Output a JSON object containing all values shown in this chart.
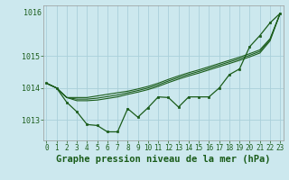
{
  "title": "Graphe pression niveau de la mer (hPa)",
  "bg_color": "#cce8ee",
  "grid_color": "#aad0da",
  "line_color": "#1a5c1a",
  "marker_color": "#1a5c1a",
  "tick_color": "#1a5c1a",
  "hours": [
    0,
    1,
    2,
    3,
    4,
    5,
    6,
    7,
    8,
    9,
    10,
    11,
    12,
    13,
    14,
    15,
    16,
    17,
    18,
    19,
    20,
    21,
    22,
    23
  ],
  "actual": [
    1014.15,
    1014.0,
    1013.55,
    1013.25,
    1012.85,
    1012.82,
    1012.62,
    1012.62,
    1013.35,
    1013.08,
    1013.38,
    1013.72,
    1013.7,
    1013.4,
    1013.72,
    1013.72,
    1013.72,
    1014.0,
    1014.42,
    1014.6,
    1015.3,
    1015.65,
    1016.05,
    1016.35
  ],
  "trend1": [
    1014.15,
    1014.0,
    1013.7,
    1013.7,
    1013.7,
    1013.75,
    1013.8,
    1013.85,
    1013.9,
    1013.97,
    1014.05,
    1014.15,
    1014.27,
    1014.38,
    1014.48,
    1014.57,
    1014.67,
    1014.77,
    1014.87,
    1014.97,
    1015.08,
    1015.2,
    1015.55,
    1016.35
  ],
  "trend2": [
    1014.15,
    1014.0,
    1013.7,
    1013.65,
    1013.65,
    1013.68,
    1013.73,
    1013.78,
    1013.85,
    1013.92,
    1014.0,
    1014.1,
    1014.22,
    1014.33,
    1014.43,
    1014.52,
    1014.62,
    1014.72,
    1014.82,
    1014.92,
    1015.03,
    1015.15,
    1015.52,
    1016.35
  ],
  "trend3": [
    1014.15,
    1014.0,
    1013.7,
    1013.6,
    1013.6,
    1013.62,
    1013.67,
    1013.72,
    1013.8,
    1013.87,
    1013.95,
    1014.05,
    1014.17,
    1014.28,
    1014.38,
    1014.47,
    1014.57,
    1014.67,
    1014.77,
    1014.87,
    1014.98,
    1015.1,
    1015.48,
    1016.35
  ],
  "ylim": [
    1012.35,
    1016.6
  ],
  "yticks": [
    1013,
    1014,
    1015
  ],
  "ytop_label": "1016",
  "xlim": [
    -0.3,
    23.3
  ],
  "title_fontsize": 7.5,
  "tick_fontsize": 6.0,
  "figwidth": 3.2,
  "figheight": 2.0,
  "dpi": 100
}
